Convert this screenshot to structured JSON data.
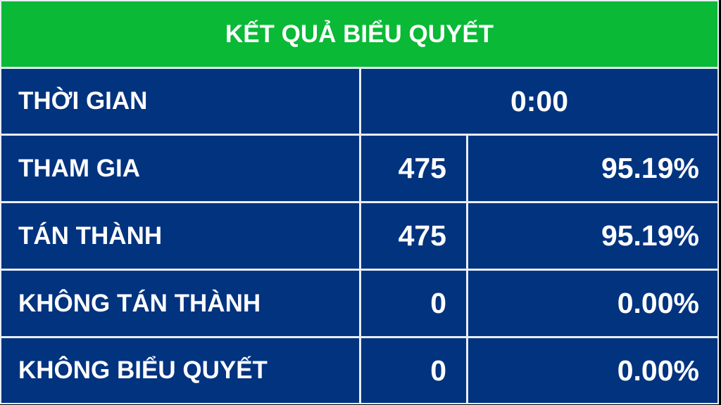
{
  "title": "KẾT QUẢ BIỂU QUYẾT",
  "colors": {
    "header": "#0ab936",
    "body": "#01337f",
    "text": "#ffffff"
  },
  "time": {
    "label": "THỜI GIAN",
    "value": "0:00"
  },
  "rows": [
    {
      "label": "THAM GIA",
      "count": "475",
      "percent": "95.19%"
    },
    {
      "label": "TÁN THÀNH",
      "count": "475",
      "percent": "95.19%"
    },
    {
      "label": "KHÔNG TÁN THÀNH",
      "count": "0",
      "percent": "0.00%"
    },
    {
      "label": "KHÔNG BIỂU QUYẾT",
      "count": "0",
      "percent": "0.00%"
    }
  ]
}
